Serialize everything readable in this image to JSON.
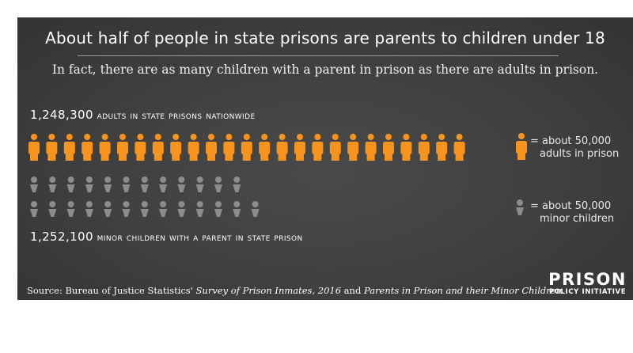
{
  "title": "About half of people in state prisons are parents to children under 18",
  "subtitle": "In fact, there are as many children with a parent in prison as there are adults in prison.",
  "adults_label": {
    "number": "1,248,300",
    "text": "adults in state prisons nationwide"
  },
  "children_label": {
    "number": "1,252,100",
    "text": "minor children with a parent in state prison"
  },
  "legend": {
    "adult": {
      "line1": "= about 50,000",
      "line2": "adults in prison"
    },
    "child": {
      "line1": "= about 50,000",
      "line2": "minor children"
    }
  },
  "source": {
    "prefix": "Source: Bureau of Justice Statistics' ",
    "title1": "Survey of Prison Inmates, 2016",
    "mid": " and ",
    "title2": "Parents in Prison and their Minor Children",
    "suffix": "."
  },
  "logo": {
    "line1": "PRISON",
    "line2": "POLICY INITIATIVE"
  },
  "colors": {
    "adult": "#f7941d",
    "child": "#8c8c8c"
  },
  "icon_names": {
    "adult": "person-adult-icon",
    "child": "person-child-icon"
  },
  "chart_data": {
    "type": "pictograph",
    "unit_value": 50000,
    "series": [
      {
        "name": "adults in state prisons nationwide",
        "value": 1248300,
        "icons": 25
      },
      {
        "name": "minor children with a parent in state prison",
        "value": 1252100,
        "icons": 25
      }
    ]
  }
}
